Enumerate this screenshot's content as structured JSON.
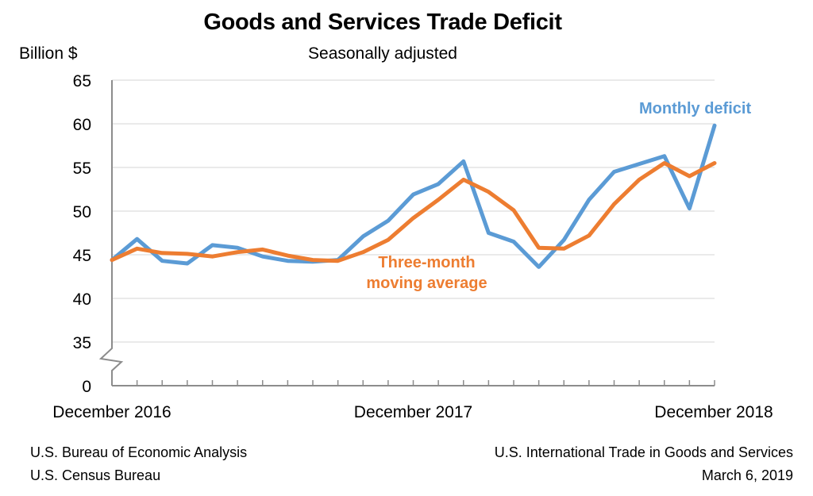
{
  "chart_data": {
    "type": "line",
    "title": "Goods and Services Trade Deficit",
    "subtitle": "Seasonally adjusted",
    "ylabel": "Billion $",
    "xlabel": "",
    "ylim": [
      35,
      65
    ],
    "y_break": true,
    "y_ticks": [
      "65",
      "60",
      "55",
      "50",
      "45",
      "40",
      "35",
      "0"
    ],
    "y_tick_values": [
      65,
      60,
      55,
      50,
      45,
      40,
      35,
      0
    ],
    "x_tick_labels": [
      {
        "label": "December 2016",
        "index": 0
      },
      {
        "label": "December 2017",
        "index": 12
      },
      {
        "label": "December 2018",
        "index": 24
      }
    ],
    "x": [
      "Dec 2016",
      "Jan 2017",
      "Feb 2017",
      "Mar 2017",
      "Apr 2017",
      "May 2017",
      "Jun 2017",
      "Jul 2017",
      "Aug 2017",
      "Sep 2017",
      "Oct 2017",
      "Nov 2017",
      "Dec 2017",
      "Jan 2018",
      "Feb 2018",
      "Mar 2018",
      "Apr 2018",
      "May 2018",
      "Jun 2018",
      "Jul 2018",
      "Aug 2018",
      "Sep 2018",
      "Oct 2018",
      "Nov 2018",
      "Dec 2018"
    ],
    "grid": true,
    "series": [
      {
        "name": "Monthly deficit",
        "color": "#5B9BD5",
        "values": [
          44.4,
          46.8,
          44.3,
          44.0,
          46.1,
          45.8,
          44.8,
          44.3,
          44.2,
          44.4,
          47.1,
          48.9,
          51.9,
          53.1,
          55.7,
          47.5,
          46.5,
          43.6,
          46.7,
          51.3,
          54.5,
          55.4,
          56.3,
          50.3,
          59.8
        ]
      },
      {
        "name": "Three-month moving average",
        "color": "#ED7D31",
        "values": [
          44.4,
          45.7,
          45.2,
          45.1,
          44.8,
          45.3,
          45.6,
          44.9,
          44.4,
          44.3,
          45.3,
          46.7,
          49.2,
          51.3,
          53.6,
          52.2,
          50.1,
          45.8,
          45.7,
          47.2,
          50.8,
          53.6,
          55.5,
          54.0,
          55.5
        ]
      }
    ],
    "annotations": [
      {
        "text": "Monthly deficit",
        "series": "Monthly deficit"
      },
      {
        "text_lines": [
          "Three-month",
          "moving average"
        ],
        "series": "Three-month moving average"
      }
    ]
  },
  "footer": {
    "left_line1": "U.S. Bureau of Economic Analysis",
    "left_line2": "U.S. Census Bureau",
    "right_line1": "U.S. International Trade in Goods and Services",
    "right_line2": "March 6, 2019"
  }
}
